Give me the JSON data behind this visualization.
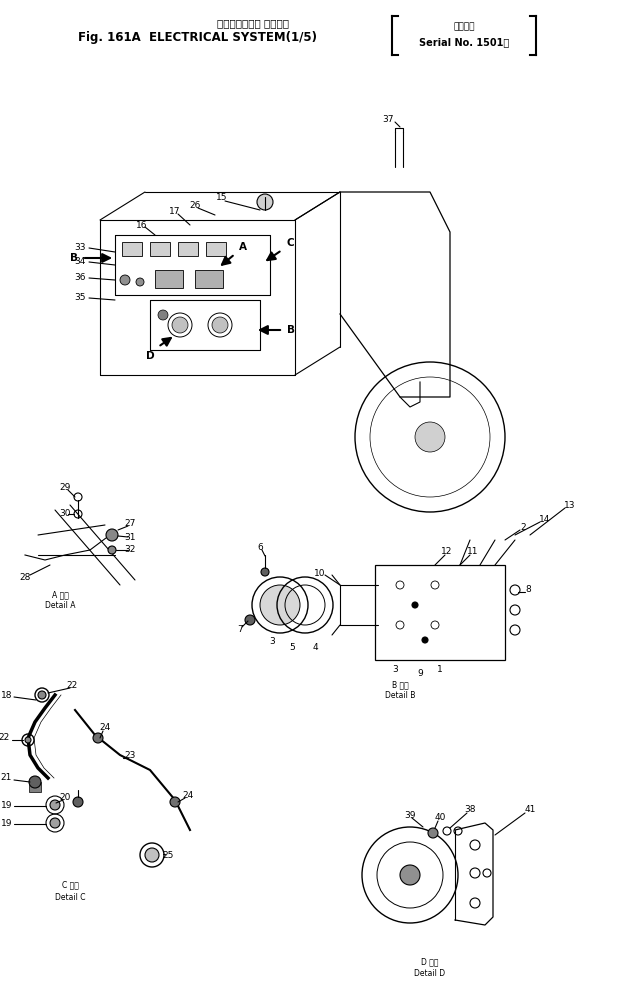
{
  "title_line1": "エレクトリカル システム",
  "title_line2": "Fig. 161A  ELECTRICAL SYSTEM(1/5)",
  "serial_line1": "適用号機",
  "serial_line2": "Serial No. 1501～",
  "bg_color": "#ffffff",
  "line_color": "#000000",
  "fig_width": 6.21,
  "fig_height": 9.94,
  "dpi": 100,
  "detail_a_label1": "A 詳細",
  "detail_a_label2": "Detail A",
  "detail_b_label1": "B 詳細",
  "detail_b_label2": "Detail B",
  "detail_c_label1": "C 詳細",
  "detail_c_label2": "Detail C",
  "detail_d_label1": "D 詳細",
  "detail_d_label2": "Detail D"
}
